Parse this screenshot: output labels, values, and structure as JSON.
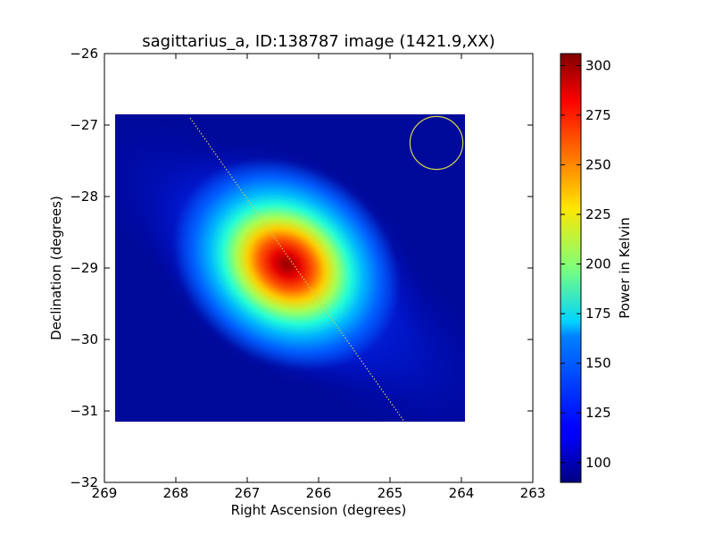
{
  "chart_data": {
    "type": "heatmap",
    "title": "sagittarius_a, ID:138787 image (1421.9,XX)",
    "xlabel": "Right Ascension (degrees)",
    "ylabel": "Declination (degrees)",
    "xlim": [
      269,
      263
    ],
    "ylim": [
      -32,
      -26
    ],
    "x_ticks": [
      269,
      268,
      267,
      266,
      265,
      264,
      263
    ],
    "y_ticks": [
      -26,
      -27,
      -28,
      -29,
      -30,
      -31,
      -32
    ],
    "x_tick_labels": [
      "269",
      "268",
      "267",
      "266",
      "265",
      "264",
      "263"
    ],
    "y_tick_labels": [
      "−26",
      "−27",
      "−28",
      "−29",
      "−30",
      "−31",
      "−32"
    ],
    "map_extent": {
      "ra": [
        268.85,
        263.95
      ],
      "dec": [
        -31.15,
        -26.85
      ]
    },
    "peak": {
      "ra": 266.45,
      "dec": -28.95,
      "value": 305
    },
    "background_value": 90,
    "beam_circle": {
      "ra": 264.35,
      "dec": -27.25,
      "radius_deg": 0.37,
      "color": "#d4d44a"
    },
    "galactic_plane_line": {
      "start": {
        "ra": 267.8,
        "dec": -26.9
      },
      "end": {
        "ra": 264.8,
        "dec": -31.15
      },
      "color": "#cccc55"
    },
    "colorbar": {
      "label": "Power in Kelvin",
      "range": [
        90,
        306
      ],
      "ticks": [
        100,
        125,
        150,
        175,
        200,
        225,
        250,
        275,
        300
      ],
      "tick_labels": [
        "100",
        "125",
        "150",
        "175",
        "200",
        "225",
        "250",
        "275",
        "300"
      ],
      "colormap": "jet"
    }
  }
}
